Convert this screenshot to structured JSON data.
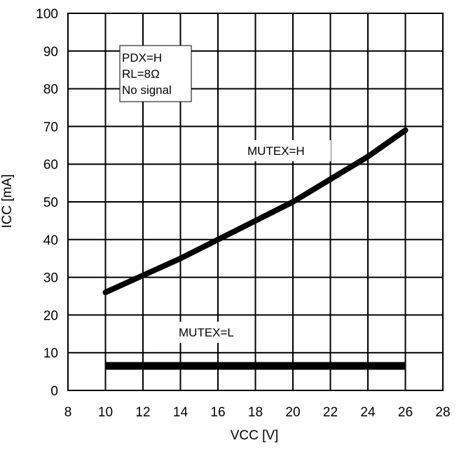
{
  "chart_data": {
    "type": "line",
    "title": "",
    "xlabel": "VCC [V]",
    "ylabel": "ICC [mA]",
    "xlim": [
      8,
      28
    ],
    "ylim": [
      0,
      100
    ],
    "x_ticks": [
      "8",
      "10",
      "12",
      "14",
      "16",
      "18",
      "20",
      "22",
      "24",
      "26",
      "28"
    ],
    "y_ticks": [
      "0",
      "10",
      "20",
      "30",
      "40",
      "50",
      "60",
      "70",
      "80",
      "90",
      "100"
    ],
    "grid": true,
    "legend": "none",
    "conditions": [
      "PDX=H",
      "RL=8Ω",
      "No signal"
    ],
    "series": [
      {
        "name": "MUTEX=H",
        "x": [
          10,
          12,
          14,
          16,
          18,
          20,
          22,
          24,
          26
        ],
        "y": [
          26,
          30.5,
          35,
          40,
          45,
          50,
          56,
          62,
          69
        ]
      },
      {
        "name": "MUTEX=L",
        "x": [
          10,
          26
        ],
        "y": [
          6.5,
          6.5
        ]
      }
    ]
  },
  "colors": {
    "line": "#000000",
    "grid": "#000000",
    "background": "#ffffff"
  }
}
